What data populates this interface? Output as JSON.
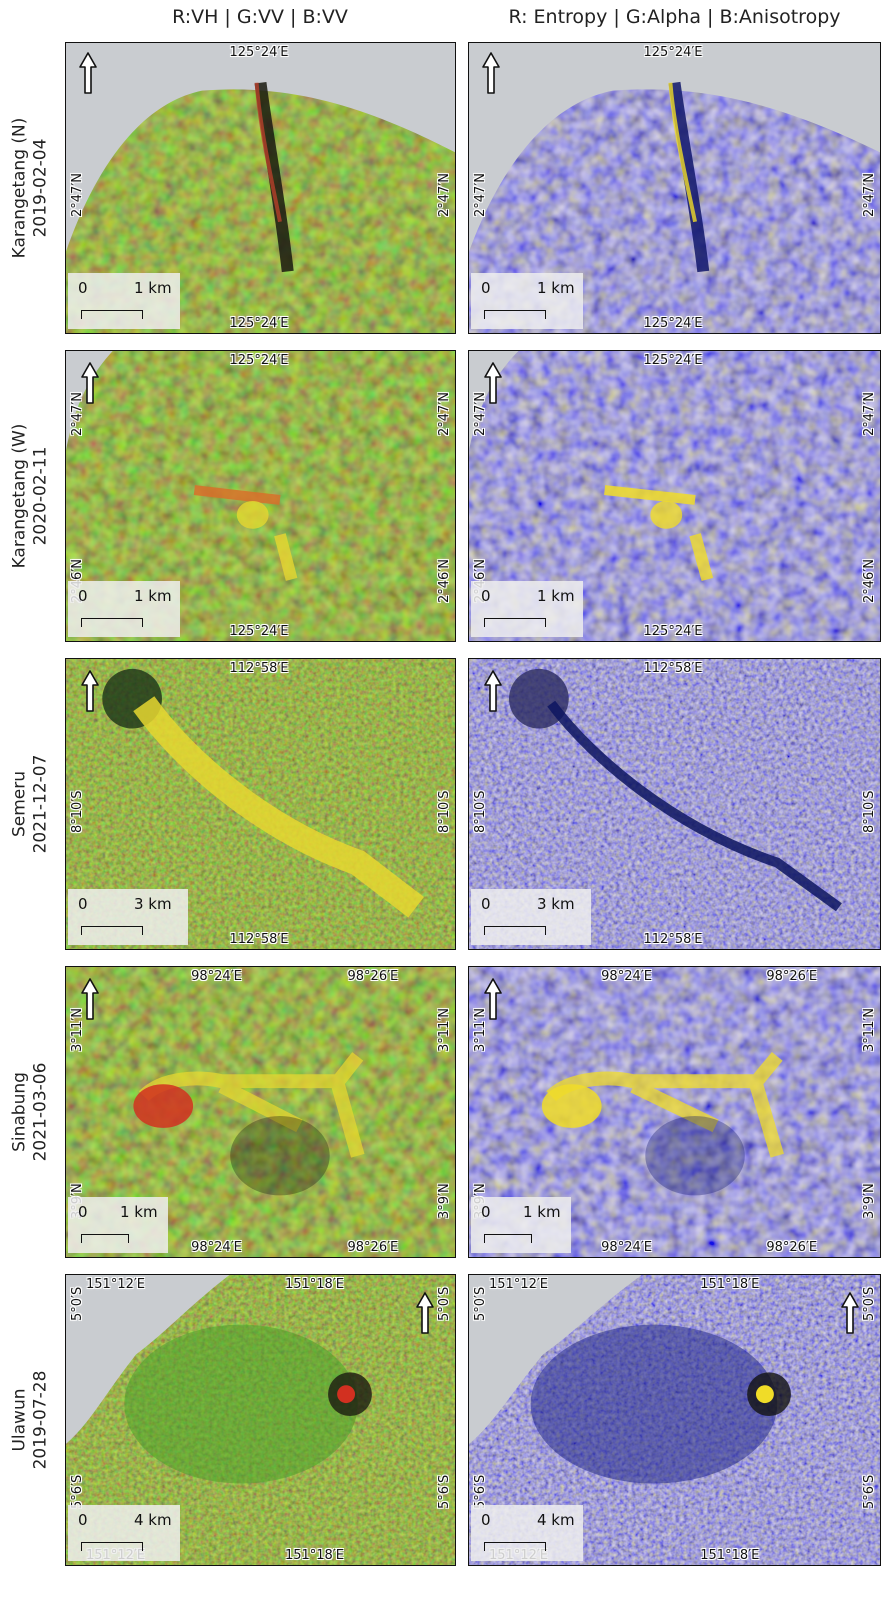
{
  "columns": [
    {
      "title": "R:VH | G:VV | B:VV"
    },
    {
      "title": "R: Entropy | G:Alpha | B:Anisotropy"
    }
  ],
  "rows": [
    {
      "name": "Karangetang (N)",
      "date": "2019-02-04",
      "lon_labels": [
        "125°24′E"
      ],
      "lat_labels": [
        "2°47′N"
      ],
      "scale_left": "0",
      "scale_right": "1 km"
    },
    {
      "name": "Karangetang (W)",
      "date": "2020-02-11",
      "lon_labels": [
        "125°24′E"
      ],
      "lat_labels": [
        "2°47′N",
        "2°46′N"
      ],
      "scale_left": "0",
      "scale_right": "1 km"
    },
    {
      "name": "Semeru",
      "date": "2021-12-07",
      "lon_labels": [
        "112°58′E"
      ],
      "lat_labels": [
        "8°10′S"
      ],
      "scale_left": "0",
      "scale_right": "3 km"
    },
    {
      "name": "Sinabung",
      "date": "2021-03-06",
      "lon_labels": [
        "98°24′E",
        "98°26′E"
      ],
      "lat_labels": [
        "3°11′N",
        "3°9′N"
      ],
      "scale_left": "0",
      "scale_right": "1 km"
    },
    {
      "name": "Ulawun",
      "date": "2019-07-28",
      "lon_labels": [
        "151°12′E",
        "151°18′E"
      ],
      "lat_labels": [
        "5°0′S",
        "5°6′S"
      ],
      "scale_left": "0",
      "scale_right": "4 km"
    }
  ],
  "icons": {
    "north_arrow": "north-arrow-icon"
  },
  "colors": {
    "rgb_base": "#6b6a2a",
    "rgb_green": "#4f8a2a",
    "ha_base": "#3d46a0",
    "ha_yellow": "#e8d630",
    "sea_gray": "#c9ccd0"
  }
}
